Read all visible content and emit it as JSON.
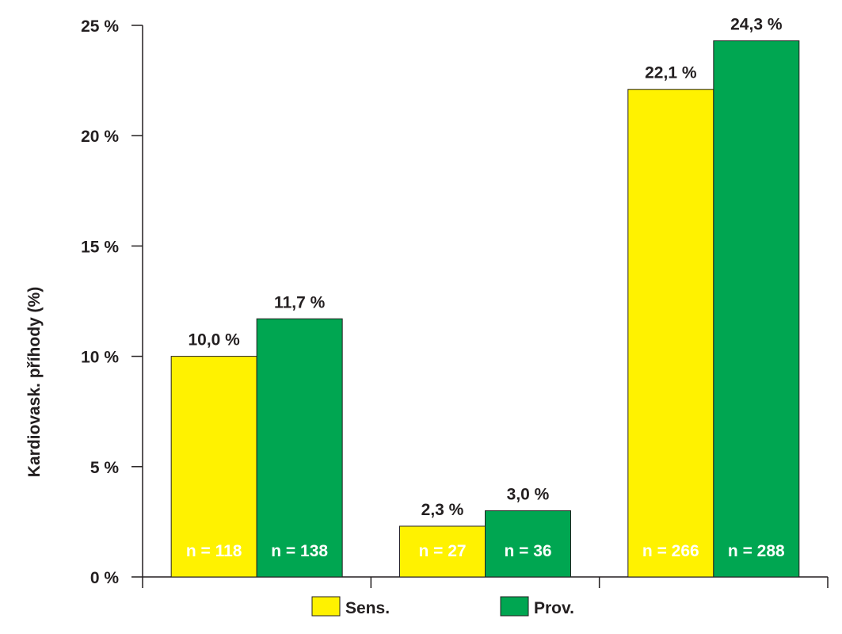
{
  "chart_data": {
    "type": "bar",
    "ylabel": "Kardiovask. příhody (%)",
    "ylim": [
      0,
      25
    ],
    "y_ticks": [
      0,
      5,
      10,
      15,
      20,
      25
    ],
    "y_tick_labels": [
      "0 %",
      "5 %",
      "10 %",
      "15 %",
      "20 %",
      "25 %"
    ],
    "grid": false,
    "legend_position": "bottom-center",
    "categories": [
      "",
      "",
      ""
    ],
    "series": [
      {
        "name": "Sens.",
        "color": "#fff200",
        "values": [
          10.0,
          2.3,
          22.1
        ],
        "value_labels": [
          "10,0 %",
          "2,3 %",
          "22,1 %"
        ],
        "n_labels": [
          "n = 118",
          "n = 27",
          "n = 266"
        ]
      },
      {
        "name": "Prov.",
        "color": "#00a651",
        "values": [
          11.7,
          3.0,
          24.3
        ],
        "value_labels": [
          "11,7 %",
          "3,0 %",
          "24,3 %"
        ],
        "n_labels": [
          "n = 138",
          "n = 36",
          "n = 288"
        ]
      }
    ]
  }
}
